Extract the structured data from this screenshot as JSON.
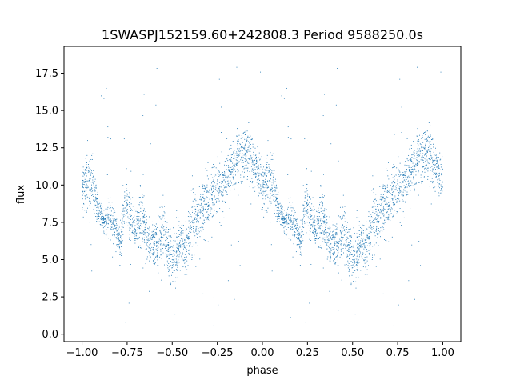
{
  "chart_data": {
    "type": "scatter",
    "title": "1SWASPJ152159.60+242808.3 Period 9588250.0s",
    "xlabel": "phase",
    "ylabel": "flux",
    "xlim": [
      -1.1,
      1.1
    ],
    "ylim": [
      -0.5,
      19.3
    ],
    "xticks": [
      -1.0,
      -0.75,
      -0.5,
      -0.25,
      0.0,
      0.25,
      0.5,
      0.75,
      1.0
    ],
    "xtick_labels": [
      "−1.00",
      "−0.75",
      "−0.50",
      "−0.25",
      "0.00",
      "0.25",
      "0.50",
      "0.75",
      "1.00"
    ],
    "yticks": [
      0.0,
      2.5,
      5.0,
      7.5,
      10.0,
      12.5,
      15.0,
      17.5
    ],
    "ytick_labels": [
      "0.0",
      "2.5",
      "5.0",
      "7.5",
      "10.0",
      "12.5",
      "15.0",
      "17.5"
    ],
    "grid": false,
    "marker_color": "#1f77b4",
    "series": [
      {
        "period_phase": [
          0.0,
          1.0
        ],
        "mirrored_to": [
          -1.0,
          0.0
        ],
        "profile_phase": [
          0.0,
          0.03,
          0.06,
          0.09,
          0.12,
          0.15,
          0.18,
          0.21,
          0.24,
          0.27,
          0.3,
          0.33,
          0.36,
          0.39,
          0.42,
          0.45,
          0.48,
          0.51,
          0.54,
          0.57,
          0.6,
          0.63,
          0.66,
          0.69,
          0.72,
          0.75,
          0.78,
          0.81,
          0.84,
          0.87,
          0.9,
          0.93,
          0.96,
          1.0
        ],
        "profile_flux_mean": [
          10.0,
          10.3,
          9.8,
          8.3,
          7.6,
          7.8,
          7.5,
          6.0,
          8.9,
          7.6,
          6.6,
          8.4,
          6.3,
          6.3,
          5.8,
          7.3,
          5.6,
          5.0,
          6.0,
          5.6,
          6.8,
          7.8,
          8.3,
          8.8,
          9.3,
          9.8,
          10.0,
          10.8,
          11.1,
          11.8,
          12.3,
          12.0,
          11.2,
          10.0
        ],
        "profile_flux_spread": [
          1.2,
          1.3,
          1.3,
          0.6,
          0.6,
          0.9,
          0.8,
          0.7,
          1.3,
          1.3,
          0.9,
          1.4,
          1.0,
          1.0,
          1.1,
          1.4,
          1.1,
          1.2,
          1.3,
          1.3,
          1.4,
          1.4,
          1.5,
          1.5,
          1.5,
          1.4,
          1.4,
          1.4,
          1.3,
          1.3,
          1.2,
          1.2,
          1.2,
          1.2
        ]
      }
    ]
  }
}
